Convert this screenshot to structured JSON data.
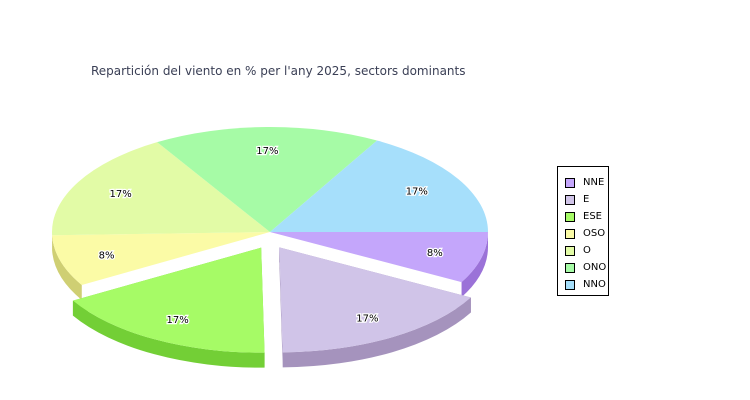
{
  "chart_data": {
    "type": "pie",
    "title": "Repartición del viento en % per l'any 2025, sectors dominants",
    "slices": [
      {
        "name": "NNE",
        "value": 8,
        "label": "8%",
        "color": "#c4a6fb",
        "side": "#9b72d8"
      },
      {
        "name": "E",
        "value": 17,
        "label": "17%",
        "color": "#d0c4e8",
        "side": "#a593bd",
        "exploded": true
      },
      {
        "name": "ESE",
        "value": 17,
        "label": "17%",
        "color": "#a6fb66",
        "side": "#73cf36",
        "exploded": true
      },
      {
        "name": "OSO",
        "value": 8,
        "label": "8%",
        "color": "#fbfba6",
        "side": "#cfcf73"
      },
      {
        "name": "O",
        "value": 17,
        "label": "17%",
        "color": "#e2fba6",
        "side": "#b2cf73"
      },
      {
        "name": "ONO",
        "value": 17,
        "label": "17%",
        "color": "#a6fba6",
        "side": "#73cf73"
      },
      {
        "name": "NNO",
        "value": 17,
        "label": "17%",
        "color": "#a6dffb",
        "side": "#73b0cf"
      }
    ],
    "legend_position": "right"
  }
}
